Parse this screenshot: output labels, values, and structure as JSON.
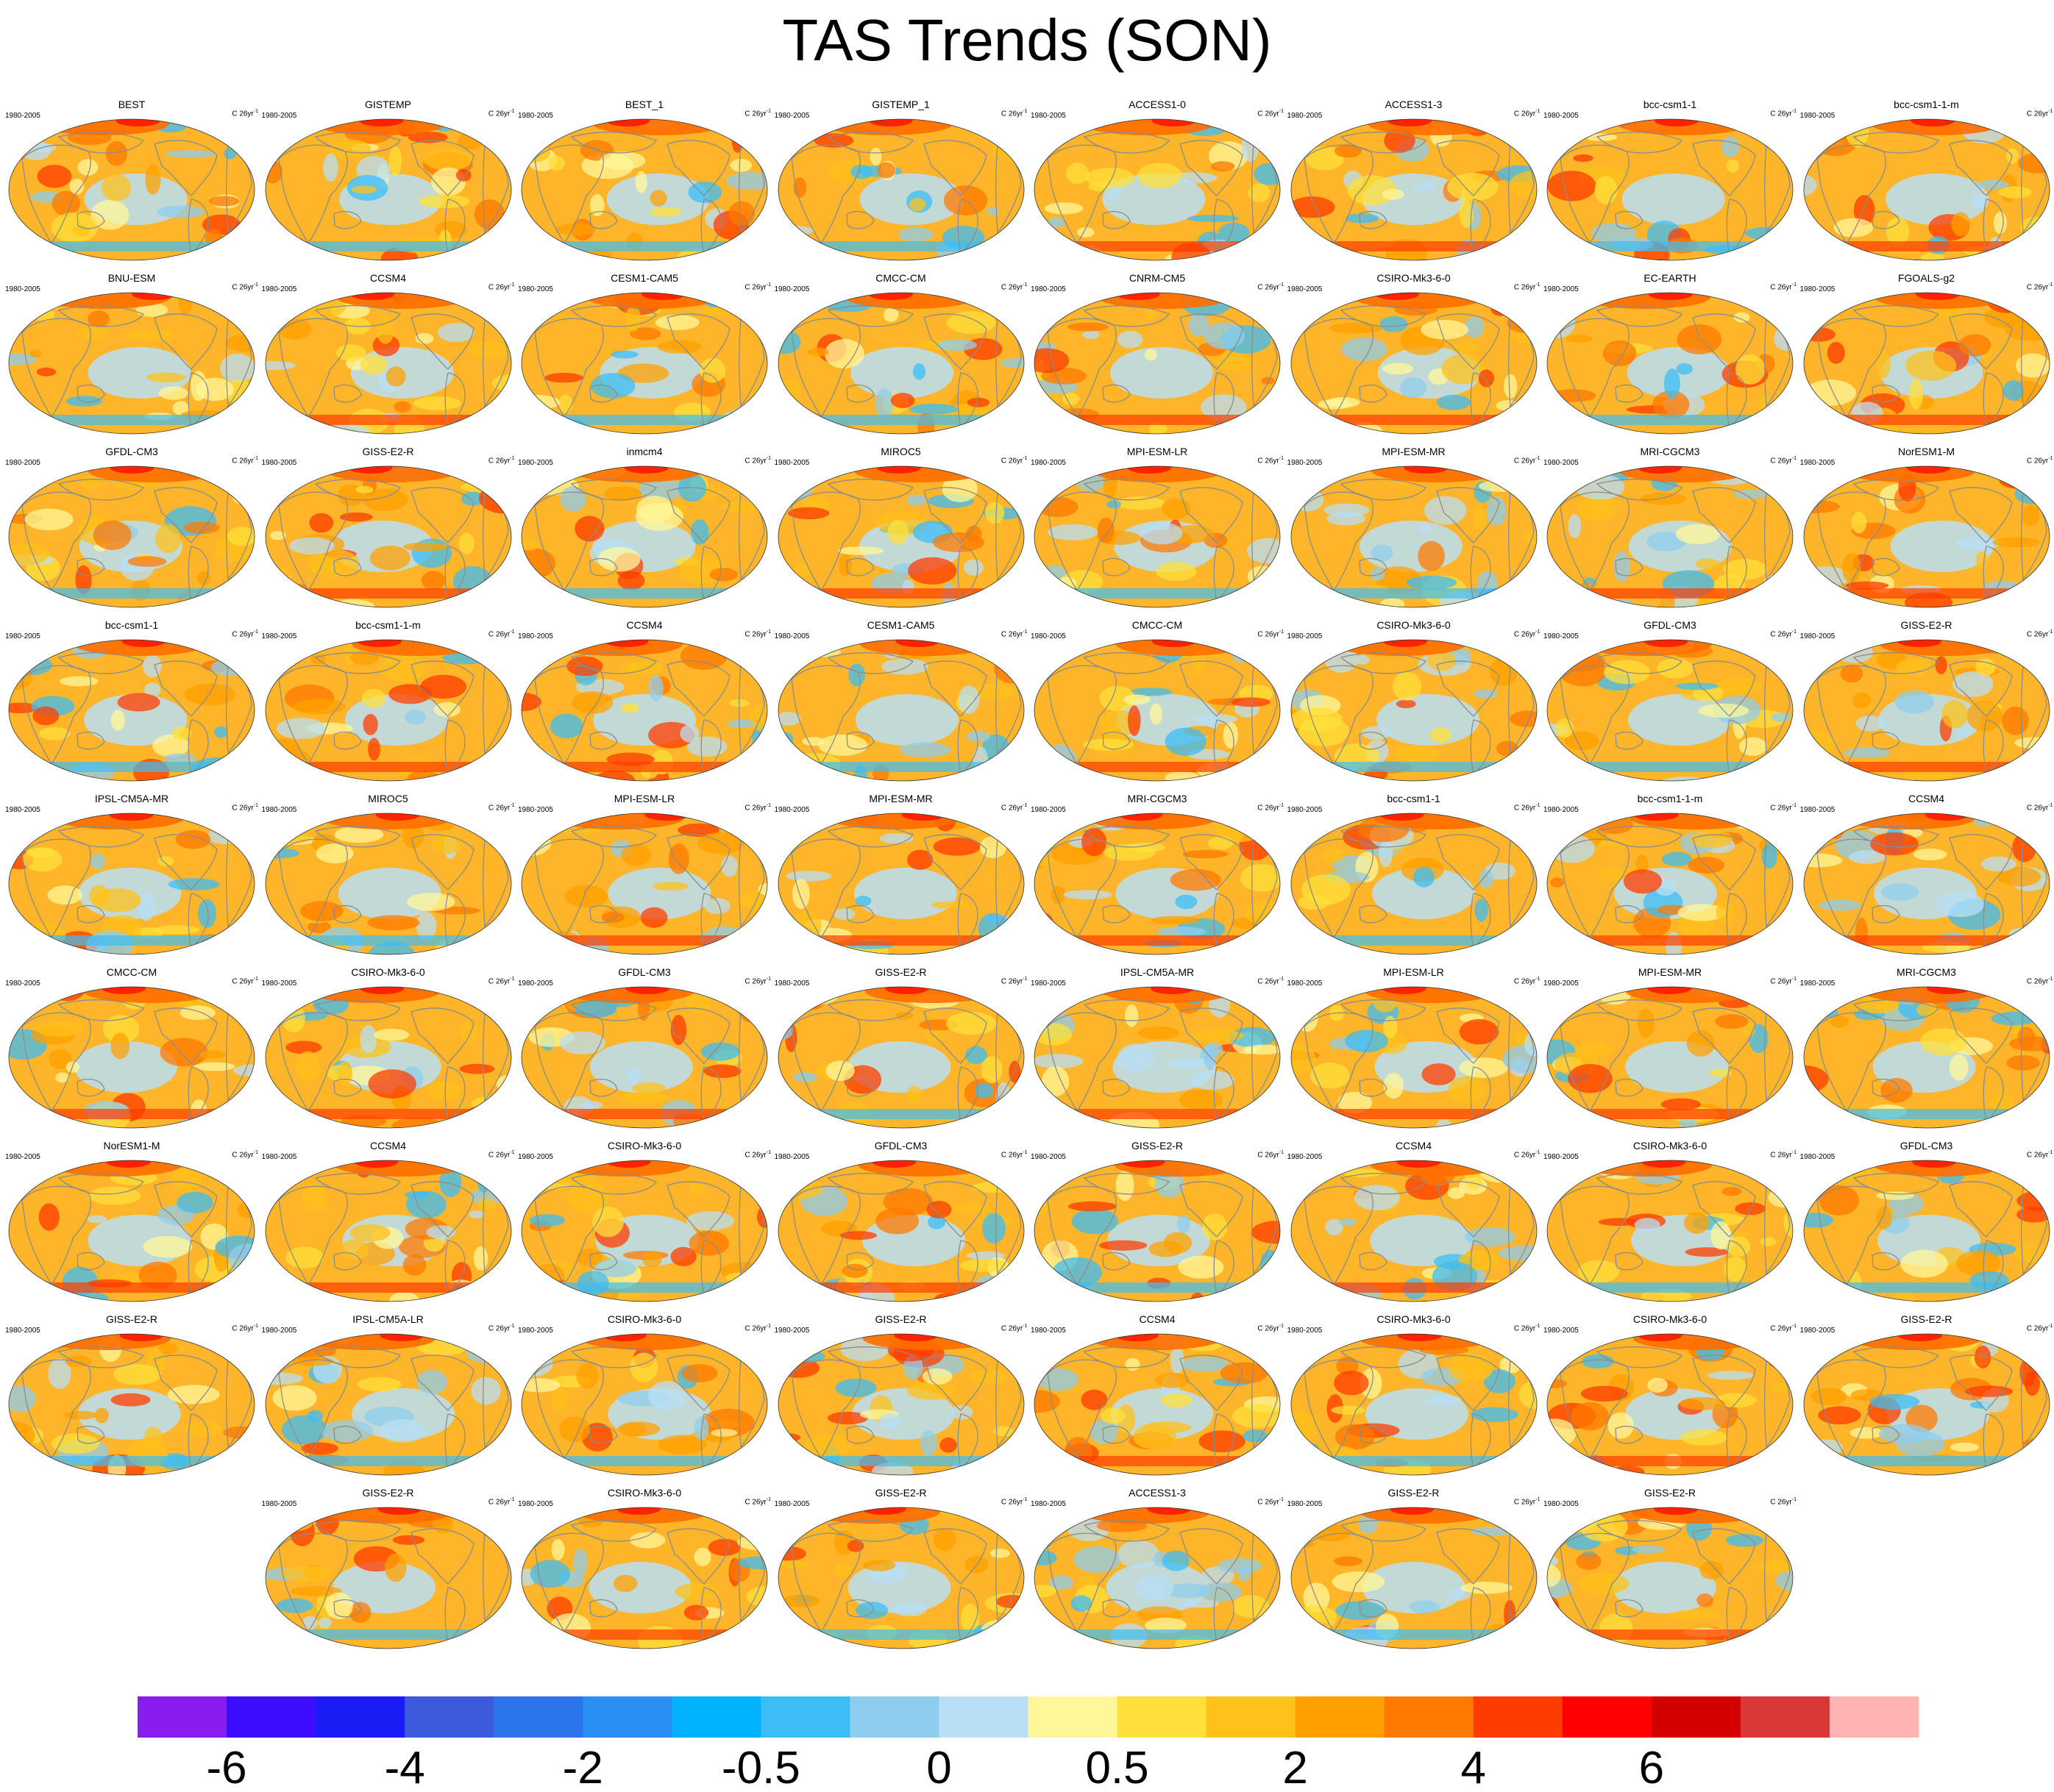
{
  "title": "TAS Trends (SON)",
  "panel_period": "1980-2005",
  "panel_units": "C 26yr",
  "panel_units_sup": "-1",
  "rows": [
    [
      "BEST",
      "GISTEMP",
      "BEST_1",
      "GISTEMP_1",
      "ACCESS1-0",
      "ACCESS1-3",
      "bcc-csm1-1",
      "bcc-csm1-1-m"
    ],
    [
      "BNU-ESM",
      "CCSM4",
      "CESM1-CAM5",
      "CMCC-CM",
      "CNRM-CM5",
      "CSIRO-Mk3-6-0",
      "EC-EARTH",
      "FGOALS-g2"
    ],
    [
      "GFDL-CM3",
      "GISS-E2-R",
      "inmcm4",
      "MIROC5",
      "MPI-ESM-LR",
      "MPI-ESM-MR",
      "MRI-CGCM3",
      "NorESM1-M"
    ],
    [
      "bcc-csm1-1",
      "bcc-csm1-1-m",
      "CCSM4",
      "CESM1-CAM5",
      "CMCC-CM",
      "CSIRO-Mk3-6-0",
      "GFDL-CM3",
      "GISS-E2-R"
    ],
    [
      "IPSL-CM5A-MR",
      "MIROC5",
      "MPI-ESM-LR",
      "MPI-ESM-MR",
      "MRI-CGCM3",
      "bcc-csm1-1",
      "bcc-csm1-1-m",
      "CCSM4"
    ],
    [
      "CMCC-CM",
      "CSIRO-Mk3-6-0",
      "GFDL-CM3",
      "GISS-E2-R",
      "IPSL-CM5A-MR",
      "MPI-ESM-LR",
      "MPI-ESM-MR",
      "MRI-CGCM3"
    ],
    [
      "NorESM1-M",
      "CCSM4",
      "CSIRO-Mk3-6-0",
      "GFDL-CM3",
      "GISS-E2-R",
      "CCSM4",
      "CSIRO-Mk3-6-0",
      "GFDL-CM3"
    ],
    [
      "GISS-E2-R",
      "IPSL-CM5A-LR",
      "CSIRO-Mk3-6-0",
      "GISS-E2-R",
      "CCSM4",
      "CSIRO-Mk3-6-0",
      "CSIRO-Mk3-6-0",
      "GISS-E2-R"
    ],
    [
      "GISS-E2-R",
      "CSIRO-Mk3-6-0",
      "GISS-E2-R",
      "ACCESS1-3",
      "GISS-E2-R",
      "GISS-E2-R"
    ]
  ],
  "colors": {
    "land_outline": "#8c8c8c",
    "ocean_cool": "#b8dff5",
    "warm": "#ffc21a",
    "hot": "#ff6e00",
    "very_hot": "#ff1a00"
  },
  "chart_data": {
    "type": "heatmap",
    "title": "TAS Trends (SON)",
    "colorbar": {
      "colors": [
        "#8a1cf0",
        "#3d0dff",
        "#1a1cf5",
        "#3b5bdc",
        "#2b74ec",
        "#2a8ff5",
        "#00b2ff",
        "#3cbdf5",
        "#8fcdee",
        "#b8dff5",
        "#fff79a",
        "#ffe03a",
        "#ffc21a",
        "#ffa000",
        "#ff7a00",
        "#ff3c00",
        "#ff0000",
        "#d40000",
        "#d93838",
        "#ffb3b3"
      ],
      "tick_labels": [
        "-6",
        "-4",
        "-2",
        "-0.5",
        "0",
        "0.5",
        "2",
        "4",
        "6"
      ]
    }
  }
}
